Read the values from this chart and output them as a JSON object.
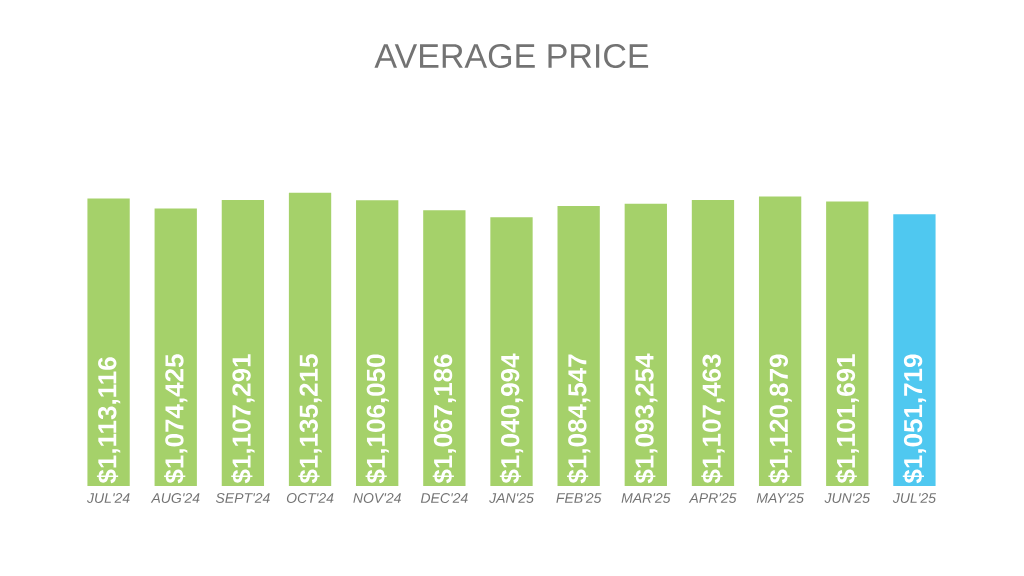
{
  "chart_data": {
    "type": "bar",
    "title": "AVERAGE PRICE",
    "categories": [
      "JUL'24",
      "AUG'24",
      "SEPT'24",
      "OCT'24",
      "NOV'24",
      "DEC'24",
      "JAN'25",
      "FEB'25",
      "MAR'25",
      "APR'25",
      "MAY'25",
      "JUN'25",
      "JUL'25"
    ],
    "values": [
      1113116,
      1074425,
      1107291,
      1135215,
      1106050,
      1067186,
      1040994,
      1084547,
      1093254,
      1107463,
      1120879,
      1101691,
      1051719
    ],
    "value_labels": [
      "$1,113,116",
      "$1,074,425",
      "$1,107,291",
      "$1,135,215",
      "$1,106,050",
      "$1,067,186",
      "$1,040,994",
      "$1,084,547",
      "$1,093,254",
      "$1,107,463",
      "$1,120,879",
      "$1,101,691",
      "$1,051,719"
    ],
    "colors": [
      "#a5d16a",
      "#a5d16a",
      "#a5d16a",
      "#a5d16a",
      "#a5d16a",
      "#a5d16a",
      "#a5d16a",
      "#a5d16a",
      "#a5d16a",
      "#a5d16a",
      "#a5d16a",
      "#a5d16a",
      "#4fc8f0"
    ]
  }
}
